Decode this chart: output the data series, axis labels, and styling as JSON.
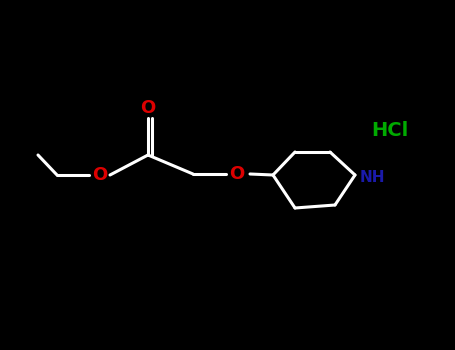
{
  "background_color": "#000000",
  "bond_color": "#111111",
  "bond_width": 2.2,
  "O_color": "#dd0000",
  "N_color": "#1a1aaa",
  "HCl_color": "#00aa00",
  "figsize": [
    4.55,
    3.5
  ],
  "dpi": 100,
  "HCl_text": "HCl",
  "NH_text": "NH",
  "O_text": "O"
}
